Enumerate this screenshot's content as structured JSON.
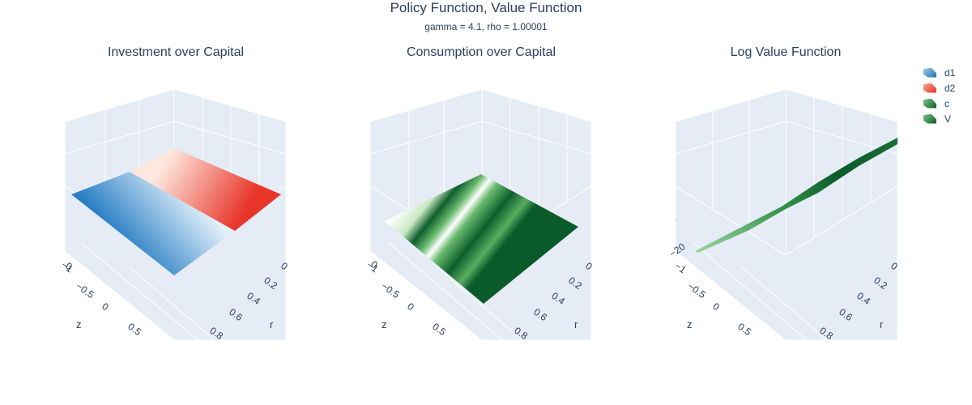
{
  "figure": {
    "title": "Policy Function, Value Function",
    "subtitle": "gamma = 4.1, rho = 1.00001"
  },
  "chart_data": [
    {
      "type": "surface",
      "title": "Investment over Capital",
      "series": [
        {
          "name": "d1",
          "colorscale": [
            "#1f6fb4",
            "#deeffa"
          ]
        },
        {
          "name": "d2",
          "colorscale": [
            "#fde0d5",
            "#e8352a"
          ]
        }
      ],
      "xlabel": "z",
      "ylabel": "r",
      "z_tick": "0",
      "x_ticks": [
        "−1",
        "−0.5",
        "0",
        "0.5"
      ],
      "y_ticks": [
        "0",
        "0.2",
        "0.4",
        "0.6",
        "0.8"
      ]
    },
    {
      "type": "surface",
      "title": "Consumption over Capital",
      "series": [
        {
          "name": "c",
          "colorscale": [
            "#0b5a2a",
            "#ffffff"
          ]
        }
      ],
      "xlabel": "z",
      "ylabel": "r",
      "z_tick": "0",
      "x_ticks": [
        "−1",
        "−0.5",
        "0",
        "0.5"
      ],
      "y_ticks": [
        "0",
        "0.2",
        "0.4",
        "0.6",
        "0.8"
      ]
    },
    {
      "type": "surface",
      "title": "Log Value Function",
      "series": [
        {
          "name": "V",
          "colorscale": [
            "#0b5a2a",
            "#9bd59d"
          ]
        }
      ],
      "xlabel": "z",
      "ylabel": "r",
      "z_tick": "−20",
      "x_ticks": [
        "−1",
        "−0.5",
        "0",
        "0.5"
      ],
      "y_ticks": [
        "0",
        "0.2",
        "0.4",
        "0.6",
        "0.8"
      ]
    }
  ],
  "legend": {
    "items": [
      {
        "name": "d1",
        "color_a": "#1f6fb4",
        "color_b": "#9ecbe9"
      },
      {
        "name": "d2",
        "color_a": "#e8352a",
        "color_b": "#f6a08c"
      },
      {
        "name": "c",
        "color_a": "#0b5a2a",
        "color_b": "#7cc47f"
      },
      {
        "name": "V",
        "color_a": "#0b5a2a",
        "color_b": "#7cc47f"
      }
    ]
  }
}
